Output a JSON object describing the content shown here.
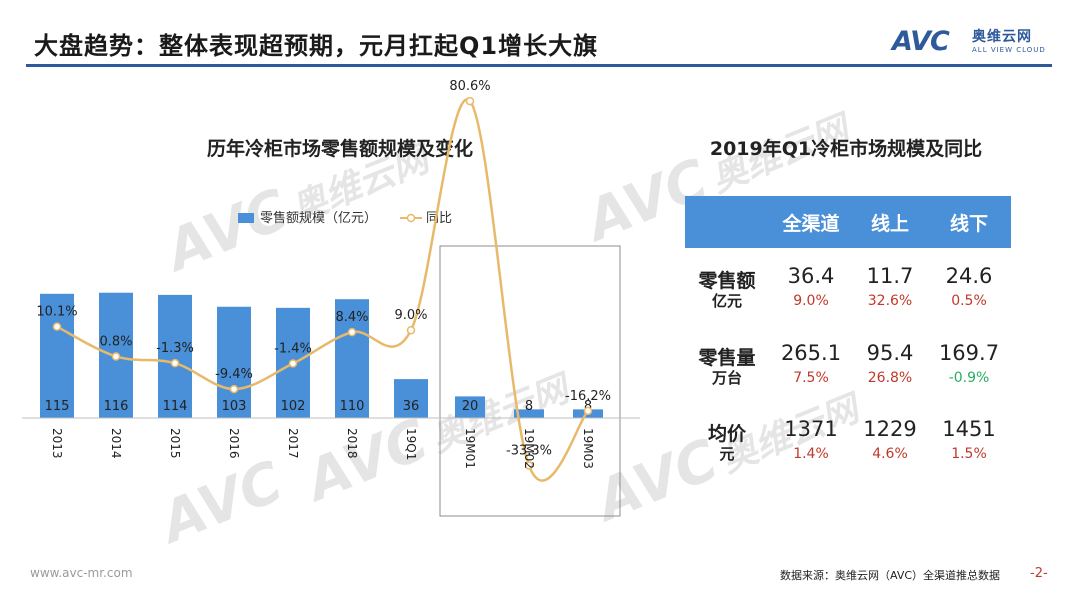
{
  "header": {
    "title": "大盘趋势：整体表现超预期，元月扛起Q1增长大旗",
    "logo_text": "AVC",
    "logo_cn": "奥维云网",
    "logo_en": "ALL VIEW CLOUD"
  },
  "watermark": {
    "text": "AVC",
    "cn": "奥维云网",
    "en": "ALL VIEW CLOUD"
  },
  "colors": {
    "accent": "#2e5a9c",
    "bar": "#4a90d9",
    "line": "#e8b96a",
    "positive": "#c0392b",
    "negative": "#27ae60"
  },
  "chart_data": {
    "type": "bar",
    "title": "历年冷柜市场零售额规模及变化",
    "categories": [
      "2013",
      "2014",
      "2015",
      "2016",
      "2017",
      "2018",
      "19Q1",
      "19M01",
      "19M02",
      "19M03"
    ],
    "series": [
      {
        "name": "零售额规模（亿元）",
        "type": "bar",
        "values": [
          115,
          116,
          114,
          103,
          102,
          110,
          36,
          20,
          8,
          8
        ],
        "labels": [
          "115",
          "116",
          "114",
          "103",
          "102",
          "110",
          "36",
          "20",
          "8",
          "8"
        ]
      },
      {
        "name": "同比",
        "type": "line",
        "values": [
          10.1,
          0.8,
          -1.3,
          -9.4,
          -1.4,
          8.4,
          9.0,
          80.6,
          -33.3,
          -16.2
        ],
        "labels": [
          "10.1%",
          "0.8%",
          "-1.3%",
          "-9.4%",
          "-1.4%",
          "8.4%",
          "9.0%",
          "80.6%",
          "-33.3%",
          "-16.2%"
        ]
      }
    ],
    "legend_position": "top",
    "grid": false,
    "highlight_range": [
      "19M01",
      "19M03"
    ]
  },
  "table": {
    "title": "2019年Q1冷柜市场规模及同比",
    "columns": [
      "全渠道",
      "线上",
      "线下"
    ],
    "rows": [
      {
        "label": "零售额",
        "unit": "亿元",
        "values": [
          "36.4",
          "11.7",
          "24.6"
        ],
        "yoy": [
          "9.0%",
          "32.6%",
          "0.5%"
        ],
        "yoy_status": [
          "positive",
          "positive",
          "positive"
        ]
      },
      {
        "label": "零售量",
        "unit": "万台",
        "values": [
          "265.1",
          "95.4",
          "169.7"
        ],
        "yoy": [
          "7.5%",
          "26.8%",
          "-0.9%"
        ],
        "yoy_status": [
          "positive",
          "positive",
          "negative"
        ]
      },
      {
        "label": "均价",
        "unit": "元",
        "values": [
          "1371",
          "1229",
          "1451"
        ],
        "yoy": [
          "1.4%",
          "4.6%",
          "1.5%"
        ],
        "yoy_status": [
          "positive",
          "positive",
          "positive"
        ]
      }
    ]
  },
  "footer": {
    "website": "www.avc-mr.com",
    "source": "数据来源：奥维云网（AVC）全渠道推总数据",
    "page": "-2-"
  }
}
